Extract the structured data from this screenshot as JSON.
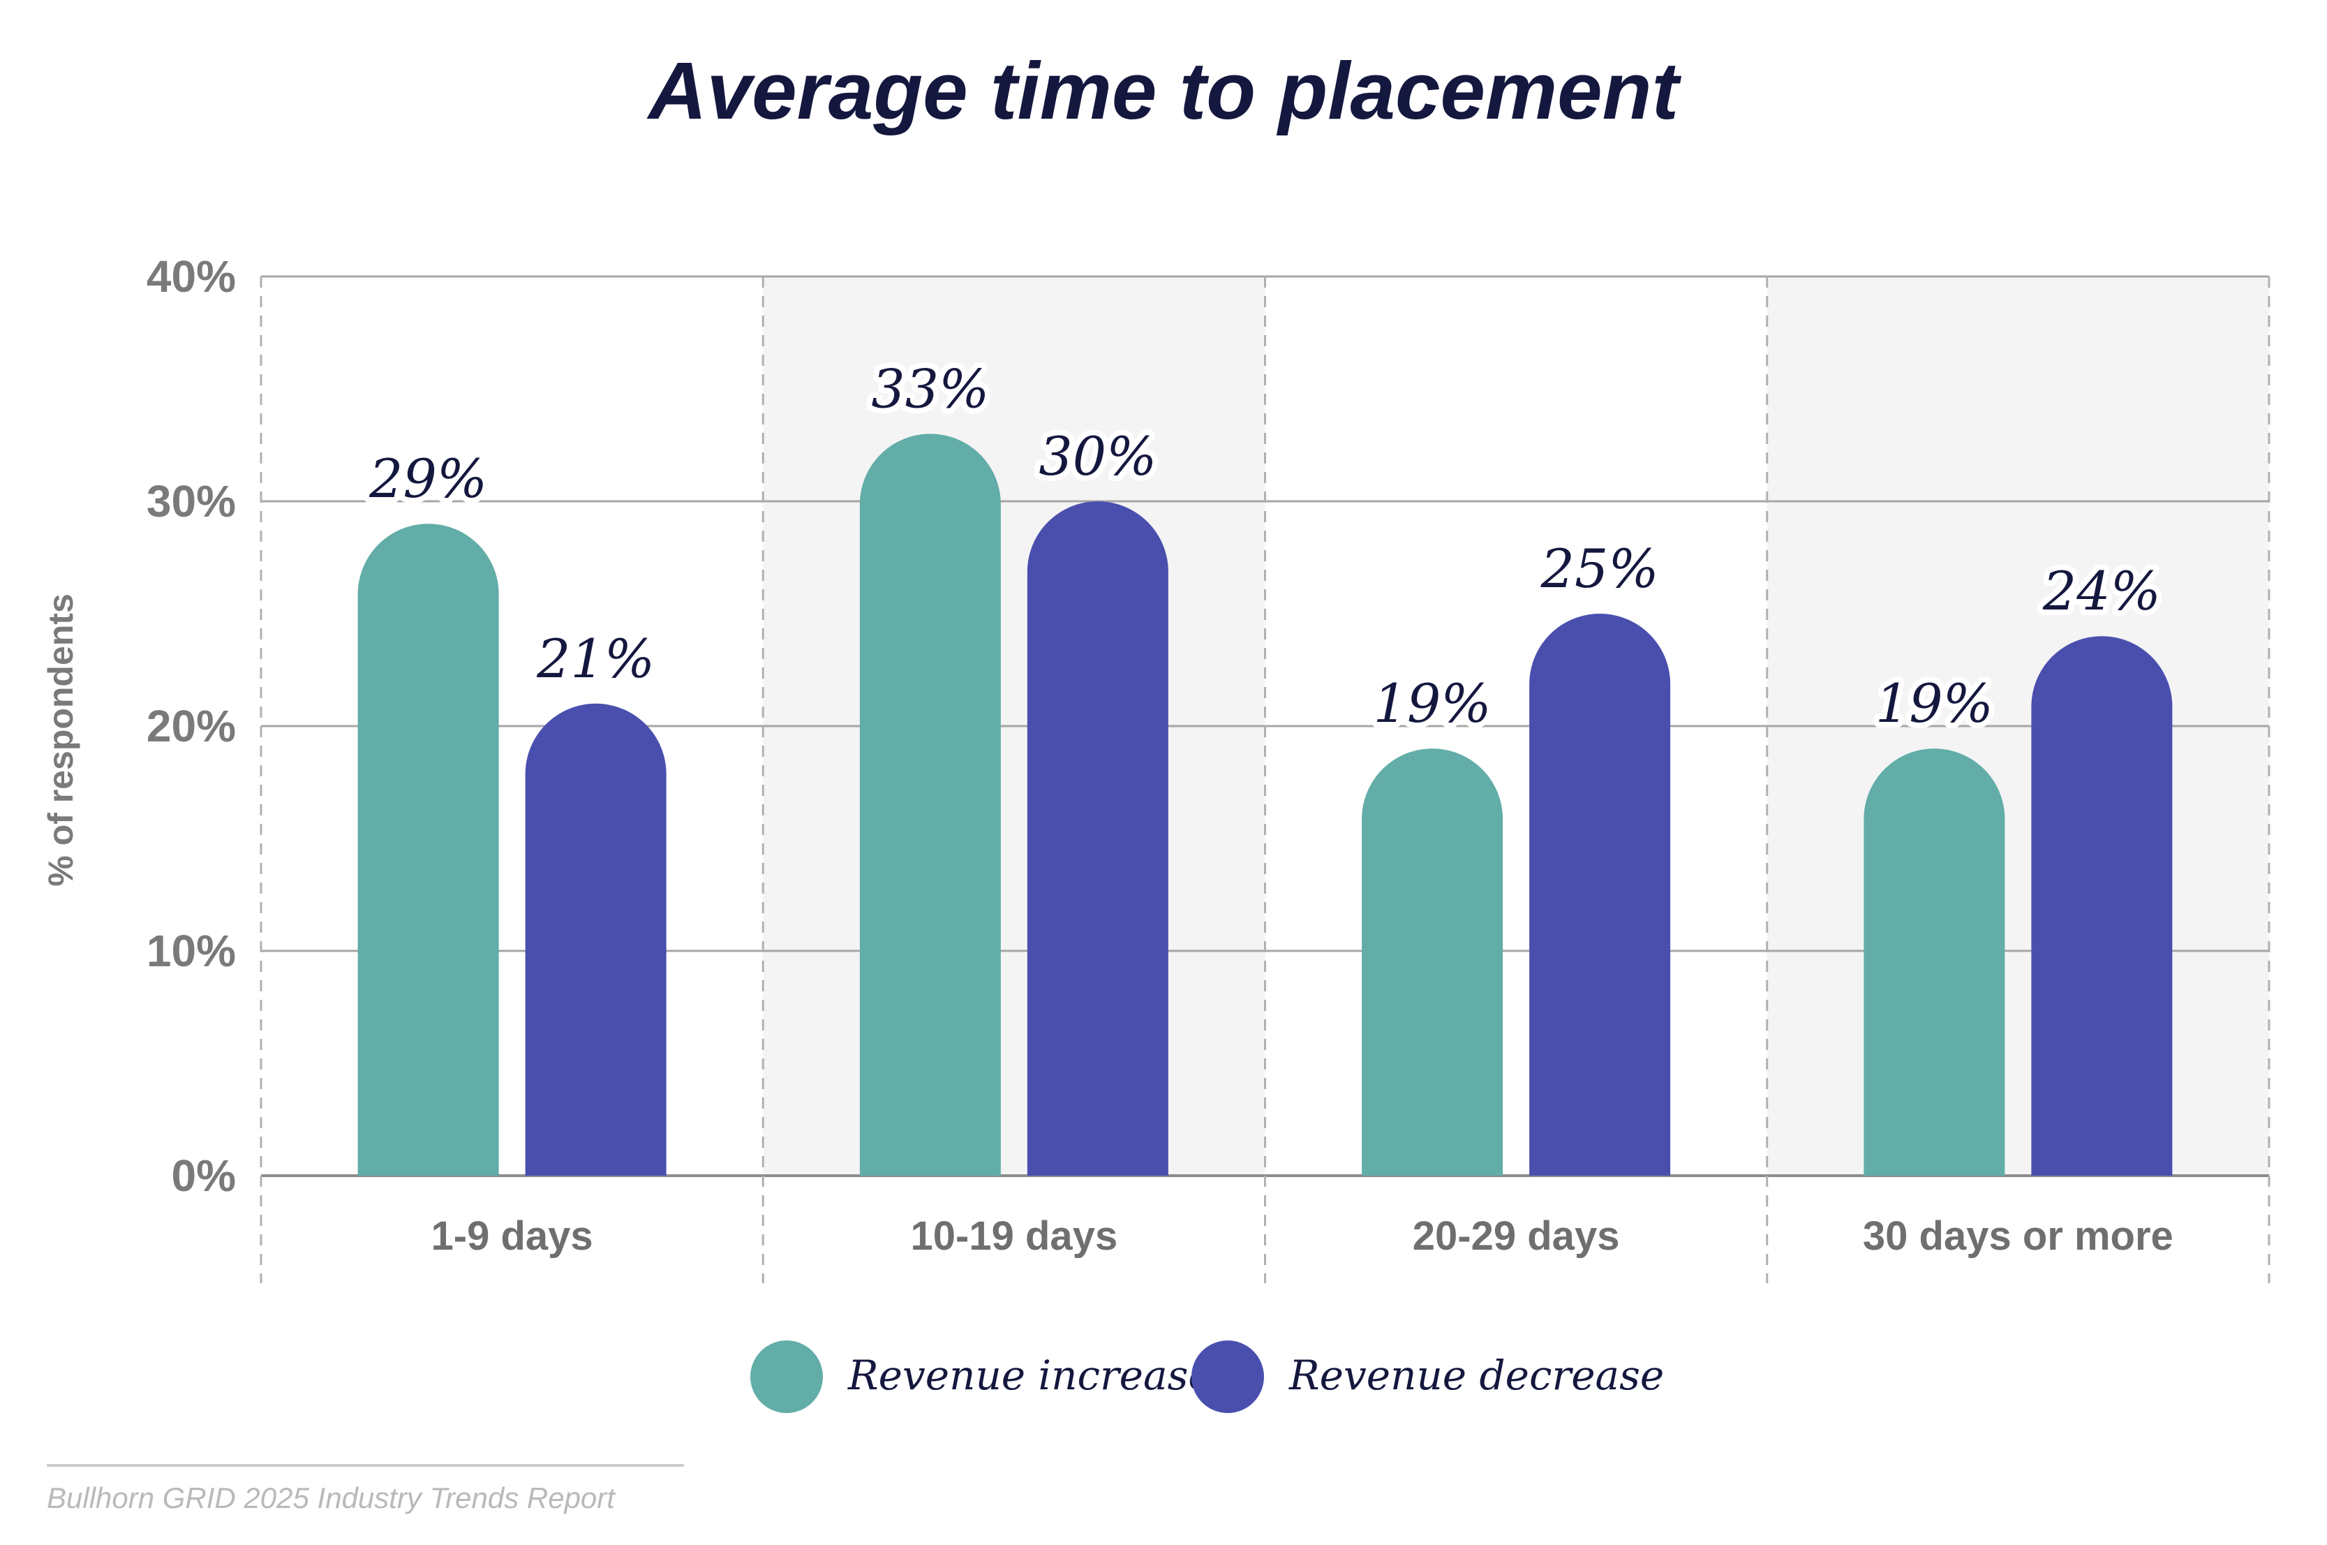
{
  "title": "Average time to placement",
  "source": "Bullhorn GRID 2025 Industry Trends Report",
  "colors": {
    "increase": "#62ada7",
    "decrease": "#4a4fae",
    "title": "#14173e",
    "axis_text": "#7a7a7a",
    "shade": "#f4f4f4",
    "grid": "#a6a6a6"
  },
  "chart_data": {
    "type": "bar",
    "title": "Average time to placement",
    "ylabel": "% of respondents",
    "xlabel": "",
    "ylim": [
      0,
      40
    ],
    "yticks": [
      "0%",
      "10%",
      "20%",
      "30%",
      "40%"
    ],
    "categories": [
      "1-9 days",
      "10-19 days",
      "20-29 days",
      "30 days or more"
    ],
    "series": [
      {
        "name": "Revenue increase",
        "values": [
          29,
          33,
          19,
          19
        ],
        "labels": [
          "29%",
          "33%",
          "19%",
          "19%"
        ],
        "color": "#62ada7"
      },
      {
        "name": "Revenue decrease",
        "values": [
          21,
          30,
          25,
          24
        ],
        "labels": [
          "21%",
          "30%",
          "25%",
          "24%"
        ],
        "color": "#4a4fae"
      }
    ],
    "grid": true,
    "legend_position": "bottom-center"
  }
}
